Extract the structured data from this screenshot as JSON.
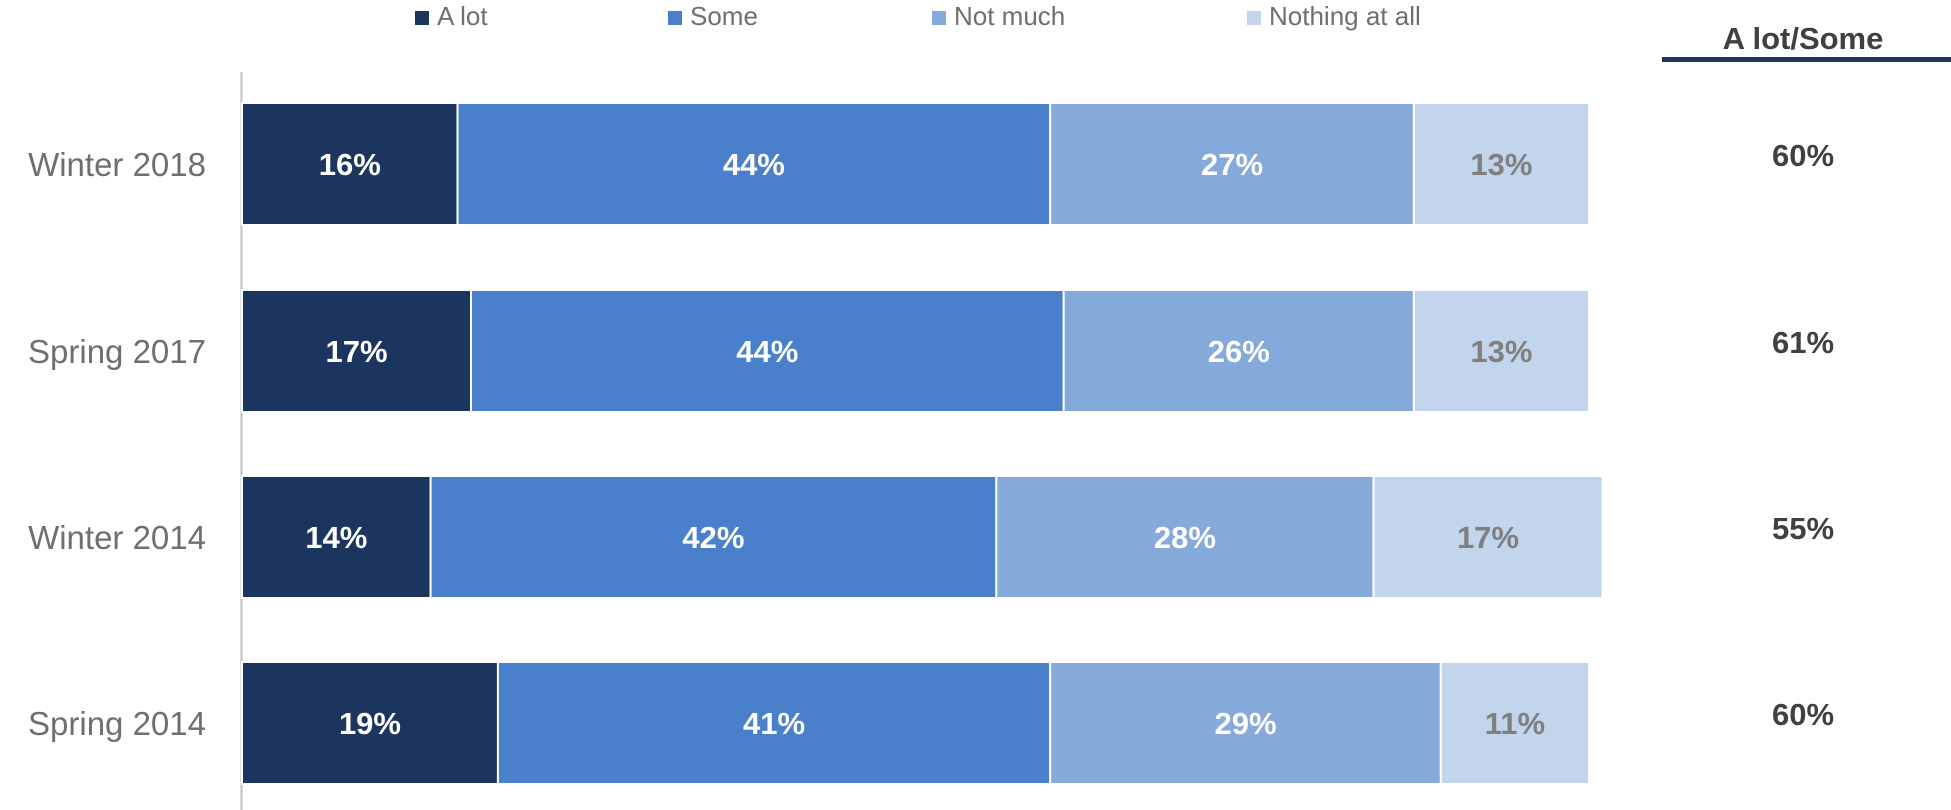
{
  "chart_data": {
    "type": "bar",
    "orientation": "horizontal",
    "stacked": true,
    "normalized": "percent",
    "categories": [
      "Winter 2018",
      "Spring 2017",
      "Winter 2014",
      "Spring 2014"
    ],
    "series": [
      {
        "name": "A lot",
        "values": [
          16,
          17,
          14,
          19
        ],
        "color": "#1c355e"
      },
      {
        "name": "Some",
        "values": [
          44,
          44,
          42,
          41
        ],
        "color": "#4a7fcb"
      },
      {
        "name": "Not much",
        "values": [
          27,
          26,
          28,
          29
        ],
        "color": "#86a9dc"
      },
      {
        "name": "Nothing at all",
        "values": [
          13,
          13,
          17,
          11
        ],
        "color": "#c3d4ed"
      }
    ],
    "data_labels": [
      [
        "16%",
        "44%",
        "27%",
        "13%"
      ],
      [
        "17%",
        "44%",
        "26%",
        "13%"
      ],
      [
        "14%",
        "42%",
        "28%",
        "17%"
      ],
      [
        "19%",
        "41%",
        "29%",
        "11%"
      ]
    ],
    "label_colors": [
      "#ffffff",
      "#ffffff",
      "#ffffff",
      "#7f7f7f"
    ],
    "summary": {
      "header": "A lot/Some",
      "values": [
        "60%",
        "61%",
        "55%",
        "60%"
      ],
      "rule_color": "#1c355e"
    },
    "legend_position": "top",
    "grid": false,
    "xlim": [
      0,
      100
    ]
  }
}
